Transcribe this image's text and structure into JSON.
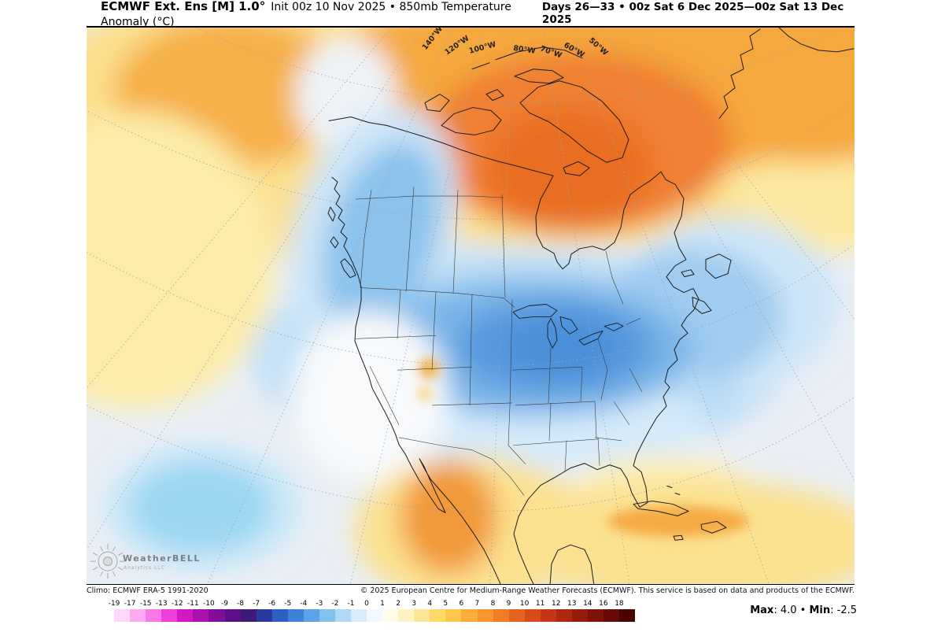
{
  "header": {
    "title_bold": "ECMWF Ext. Ens [M] 1.0°",
    "title_rest": "Init 00z 10 Nov 2025 • 850mb Temperature Anomaly (°C)",
    "valid_range": "Days 26—33 • 00z Sat 6 Dec 2025—00z Sat 13 Dec 2025"
  },
  "map": {
    "longitude_labels": [
      "140°W",
      "120°W",
      "100°W",
      "80°W",
      "70°W",
      "60°W",
      "50°W"
    ],
    "colors": {
      "background": "#e9eef4",
      "warm_halo": "#fbdf8d",
      "warm": "#f5a83e",
      "warm_core": "#ea6e24",
      "pacific_yellow": "#fceca8",
      "cold_outer": "#c3e0f6",
      "cold_mid": "#79b4e8",
      "cold_core": "#4890d8",
      "cyan_blob": "#9dd6f3",
      "mexico_orange": "#f2993a",
      "caribbean_yellow": "#fbe18f"
    }
  },
  "logo": {
    "name": "WeatherBELL",
    "sub": "Analytics LLC"
  },
  "attribution": {
    "climo": "Climo: ECMWF ERA-5 1991-2020",
    "copyright": "© 2025 European Centre for Medium-Range Weather Forecasts (ECMWF). This service is based on data and products of the ECMWF."
  },
  "colorbar": {
    "labels": [
      "-19",
      "-17",
      "-15",
      "-13",
      "-12",
      "-11",
      "-10",
      "-9",
      "-8",
      "-7",
      "-6",
      "-5",
      "-4",
      "-3",
      "-2",
      "-1",
      "0",
      "1",
      "2",
      "3",
      "4",
      "5",
      "6",
      "7",
      "8",
      "9",
      "10",
      "11",
      "12",
      "13",
      "14",
      "16",
      "18"
    ],
    "colors": [
      "#ffffff",
      "#fed8fb",
      "#fdaaf2",
      "#f977e7",
      "#ef3fd8",
      "#d317c4",
      "#aa10ae",
      "#830d9b",
      "#5d0f87",
      "#3c1a78",
      "#2b3a9e",
      "#2e5fc4",
      "#3c82d6",
      "#5ba3e4",
      "#83c0ee",
      "#aed8f5",
      "#d7ebfa",
      "#f2f8fd",
      "#fefce8",
      "#fdf3c2",
      "#fde794",
      "#fdd968",
      "#fdc64c",
      "#fcad39",
      "#f7952e",
      "#f07c26",
      "#e6621f",
      "#d84a1a",
      "#c63616",
      "#b02811",
      "#981c0c",
      "#801208",
      "#670b06",
      "#4a0503"
    ]
  },
  "stats": {
    "max_label": "Max",
    "max_rest": ": 4.0 ",
    "sep": "• ",
    "min_label": "Min",
    "min_rest": ": -2.5",
    "max_value": "4.0",
    "min_value": "-2.5"
  }
}
